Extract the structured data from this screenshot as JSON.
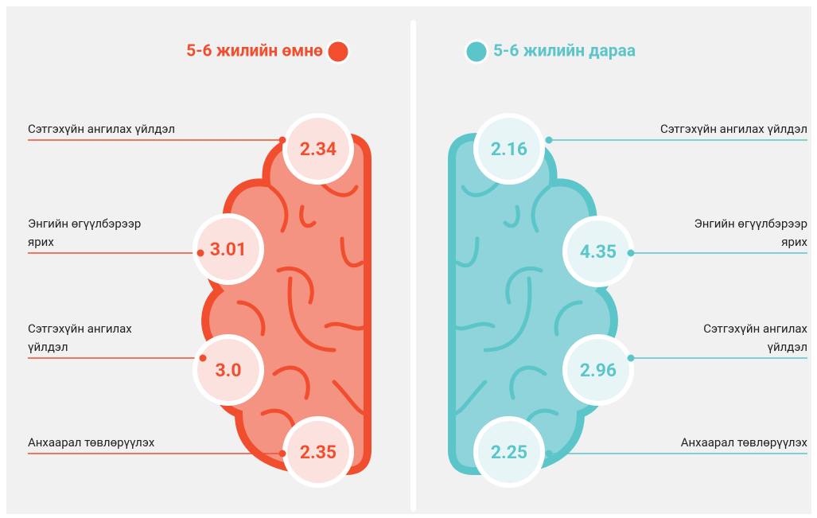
{
  "before": {
    "title": "5-6 жилийн өмнө",
    "items": [
      {
        "label": [
          "Сэтгэхүйн ангилах үйлдэл"
        ],
        "value": "2.34"
      },
      {
        "label": [
          "Энгийн өгүүлбэрээр",
          "ярих"
        ],
        "value": "3.01"
      },
      {
        "label": [
          "Сэтгэхүйн ангилах",
          "үйлдэл"
        ],
        "value": "3.0"
      },
      {
        "label": [
          "Анхаарал төвлөрүүлэх"
        ],
        "value": "2.35"
      }
    ]
  },
  "after": {
    "title": "5-6 жилийн дараа",
    "items": [
      {
        "label": [
          "Сэтгэхүйн ангилах үйлдэл"
        ],
        "value": "2.16"
      },
      {
        "label": [
          "Энгийн өгүүлбэрээр",
          "ярих"
        ],
        "value": "4.35"
      },
      {
        "label": [
          "Сэтгэхүйн ангилах",
          "үйлдэл"
        ],
        "value": "2.96"
      },
      {
        "label": [
          "Анхаарал төвлөрүүлэх"
        ],
        "value": "2.25"
      }
    ]
  }
}
